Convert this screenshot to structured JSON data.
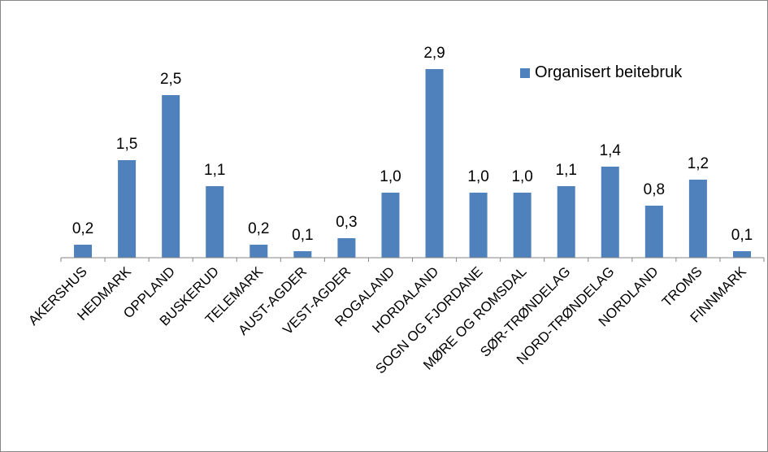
{
  "chart_data": {
    "type": "bar",
    "categories": [
      "AKERSHUS",
      "HEDMARK",
      "OPPLAND",
      "BUSKERUD",
      "TELEMARK",
      "AUST-AGDER",
      "VEST-AGDER",
      "ROGALAND",
      "HORDALAND",
      "SOGN OG FJORDANE",
      "MØRE OG ROMSDAL",
      "SØR-TRØNDELAG",
      "NORD-TRØNDELAG",
      "NORDLAND",
      "TROMS",
      "FINNMARK"
    ],
    "series": [
      {
        "name": "Organisert beitebruk",
        "values": [
          0.2,
          1.5,
          2.5,
          1.1,
          0.2,
          0.1,
          0.3,
          1.0,
          2.9,
          1.0,
          1.0,
          1.1,
          1.4,
          0.8,
          1.2,
          0.1
        ],
        "labels": [
          "0,2",
          "1,5",
          "2,5",
          "1,1",
          "0,2",
          "0,1",
          "0,3",
          "1,0",
          "2,9",
          "1,0",
          "1,0",
          "1,1",
          "1,4",
          "0,8",
          "1,2",
          "0,1"
        ]
      }
    ],
    "color": "#4f81bd",
    "title": "",
    "xlabel": "",
    "ylabel": "",
    "ylim": [
      0,
      3.0
    ],
    "grid": false,
    "legend_position": "top-right"
  }
}
